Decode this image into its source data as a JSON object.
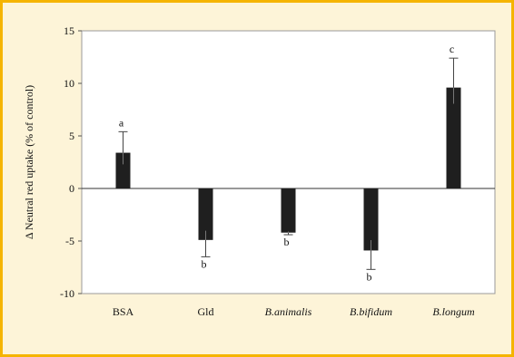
{
  "chart_data": {
    "type": "bar",
    "title": "",
    "xlabel": "",
    "ylabel": "Δ Neutral red uptake (% of control)",
    "ylim": [
      -10,
      15
    ],
    "yticks": [
      15,
      10,
      5,
      0,
      -5,
      -10
    ],
    "grid": false,
    "categories": [
      "BSA",
      "Gld",
      "B.animalis",
      "B.bifidum",
      "B.longum"
    ],
    "italic_categories": [
      false,
      false,
      true,
      true,
      true
    ],
    "values": [
      3.4,
      -4.9,
      -4.2,
      -5.9,
      9.6
    ],
    "errors": [
      2.0,
      1.6,
      0.2,
      1.8,
      2.8
    ],
    "significance": [
      "a",
      "b",
      "b",
      "b",
      "c"
    ],
    "bar_color": "#1f1f1f",
    "background_color": "#fdf4d8",
    "border_color": "#f5b400"
  }
}
